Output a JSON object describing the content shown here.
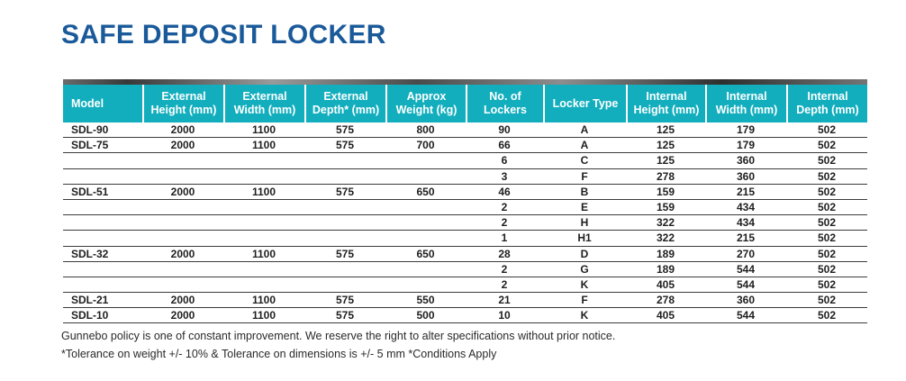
{
  "title": "SAFE DEPOSIT LOCKER",
  "colors": {
    "title_blue": "#1A5A9A",
    "header_teal": "#12AEBD",
    "row_line": "#3B3B3B",
    "text_dark": "#1F1F1F"
  },
  "table": {
    "headers": [
      "Model",
      "External\nHeight (mm)",
      "External\nWidth (mm)",
      "External\nDepth* (mm)",
      "Approx\nWeight (kg)",
      "No. of\nLockers",
      "Locker Type",
      "Internal\nHeight (mm)",
      "Internal\nWidth (mm)",
      "Internal\nDepth (mm)"
    ],
    "rows": [
      [
        "SDL-90",
        "2000",
        "1100",
        "575",
        "800",
        "90",
        "A",
        "125",
        "179",
        "502"
      ],
      [
        "SDL-75",
        "2000",
        "1100",
        "575",
        "700",
        "66",
        "A",
        "125",
        "179",
        "502"
      ],
      [
        "",
        "",
        "",
        "",
        "",
        "6",
        "C",
        "125",
        "360",
        "502"
      ],
      [
        "",
        "",
        "",
        "",
        "",
        "3",
        "F",
        "278",
        "360",
        "502"
      ],
      [
        "SDL-51",
        "2000",
        "1100",
        "575",
        "650",
        "46",
        "B",
        "159",
        "215",
        "502"
      ],
      [
        "",
        "",
        "",
        "",
        "",
        "2",
        "E",
        "159",
        "434",
        "502"
      ],
      [
        "",
        "",
        "",
        "",
        "",
        "2",
        "H",
        "322",
        "434",
        "502"
      ],
      [
        "",
        "",
        "",
        "",
        "",
        "1",
        "H1",
        "322",
        "215",
        "502"
      ],
      [
        "SDL-32",
        "2000",
        "1100",
        "575",
        "650",
        "28",
        "D",
        "189",
        "270",
        "502"
      ],
      [
        "",
        "",
        "",
        "",
        "",
        "2",
        "G",
        "189",
        "544",
        "502"
      ],
      [
        "",
        "",
        "",
        "",
        "",
        "2",
        "K",
        "405",
        "544",
        "502"
      ],
      [
        "SDL-21",
        "2000",
        "1100",
        "575",
        "550",
        "21",
        "F",
        "278",
        "360",
        "502"
      ],
      [
        "SDL-10",
        "2000",
        "1100",
        "575",
        "500",
        "10",
        "K",
        "405",
        "544",
        "502"
      ]
    ]
  },
  "footer": {
    "line1": "Gunnebo policy is one of constant improvement. We reserve the right to alter specifications without prior notice.",
    "line2": "*Tolerance on weight +/- 10% & Tolerance on dimensions is +/- 5 mm *Conditions Apply"
  }
}
